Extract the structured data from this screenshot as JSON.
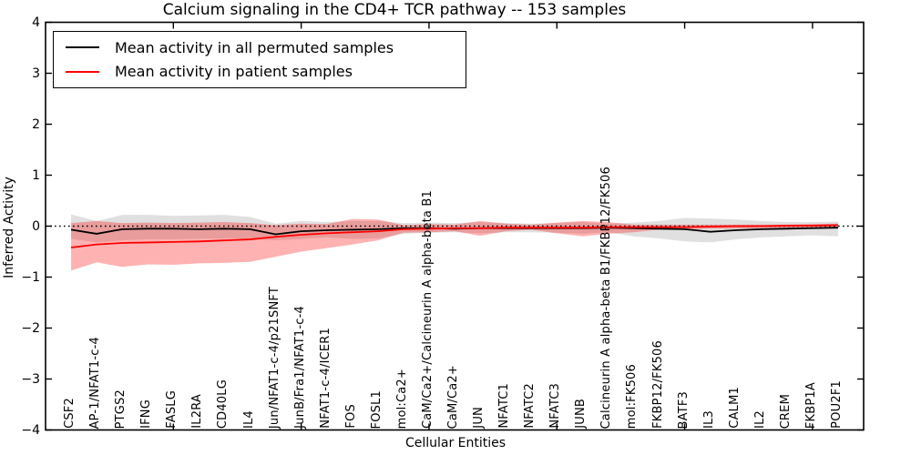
{
  "title": "Calcium signaling in the CD4+ TCR pathway -- 153 samples",
  "legend": {
    "items": [
      {
        "label": "Mean activity in all permuted samples",
        "color": "#000000"
      },
      {
        "label": "Mean activity in patient samples",
        "color": "#ff0000"
      }
    ]
  },
  "axes": {
    "ylabel": "Inferred Activity",
    "xlabel": "Cellular Entities",
    "ytick_labels": [
      "4",
      "3",
      "2",
      "1",
      "0",
      "−1",
      "−2",
      "−3",
      "−4"
    ],
    "ytick_values": [
      4,
      3,
      2,
      1,
      0,
      -1,
      -2,
      -3,
      -4
    ],
    "xtick_values": [
      5,
      10,
      15,
      20,
      25,
      30
    ],
    "ylim": [
      -4,
      4
    ],
    "xlim": [
      0,
      32
    ],
    "grid": false
  },
  "chart_data": {
    "type": "line",
    "title": "Calcium signaling in the CD4+ TCR pathway -- 153 samples",
    "xlabel": "Cellular Entities",
    "ylabel": "Inferred Activity",
    "ylim": [
      -4,
      4
    ],
    "legend_position": "upper left",
    "categories": [
      "CSF2",
      "AP-1/NFAT1-c-4",
      "PTGS2",
      "IFNG",
      "FASLG",
      "IL2RA",
      "CD40LG",
      "IL4",
      "Jun/NFAT1-c-4/p21SNFT",
      "JunB/Fra1/NFAT1-c-4",
      "NFAT1-c-4/ICER1",
      "FOS",
      "FOSL1",
      "mol:Ca2+",
      "CaM/Ca2+/Calcineurin A alpha-beta B1",
      "CaM/Ca2+",
      "JUN",
      "NFATC1",
      "NFATC2",
      "NFATC3",
      "JUNB",
      "Calcineurin A alpha-beta B1/FKBP12/FK506",
      "mol:FK506",
      "FKBP12/FK506",
      "BATF3",
      "IL3",
      "CALM1",
      "IL2",
      "CREM",
      "FKBP1A",
      "POU2F1"
    ],
    "series": [
      {
        "name": "Mean activity in all permuted samples",
        "color": "#000000",
        "values": [
          -0.07,
          -0.15,
          -0.06,
          -0.05,
          -0.05,
          -0.06,
          -0.05,
          -0.06,
          -0.16,
          -0.1,
          -0.08,
          -0.07,
          -0.06,
          -0.04,
          -0.04,
          -0.05,
          -0.04,
          -0.04,
          -0.04,
          -0.04,
          -0.04,
          -0.03,
          -0.04,
          -0.05,
          -0.06,
          -0.11,
          -0.08,
          -0.06,
          -0.05,
          -0.04,
          -0.03
        ]
      },
      {
        "name": "Mean activity in patient samples",
        "color": "#ff0000",
        "values": [
          -0.42,
          -0.36,
          -0.33,
          -0.32,
          -0.31,
          -0.3,
          -0.28,
          -0.26,
          -0.21,
          -0.17,
          -0.14,
          -0.12,
          -0.1,
          -0.06,
          -0.05,
          -0.04,
          -0.04,
          -0.03,
          -0.03,
          -0.03,
          -0.03,
          -0.02,
          -0.02,
          -0.02,
          -0.02,
          -0.01,
          0.0,
          0.0,
          0.01,
          0.01,
          0.02
        ]
      }
    ],
    "bands": [
      {
        "name": "permuted-samples-range",
        "color": "rgba(0,0,0,0.12)",
        "upper": [
          0.23,
          0.1,
          0.22,
          0.22,
          0.2,
          0.21,
          0.22,
          0.18,
          0.05,
          0.1,
          0.08,
          0.1,
          0.1,
          0.06,
          0.07,
          0.06,
          0.08,
          0.06,
          0.05,
          0.06,
          0.08,
          0.05,
          0.07,
          0.1,
          0.16,
          0.15,
          0.13,
          0.1,
          0.08,
          0.08,
          0.09
        ],
        "lower": [
          -0.25,
          -0.32,
          -0.28,
          -0.26,
          -0.26,
          -0.25,
          -0.24,
          -0.25,
          -0.28,
          -0.25,
          -0.22,
          -0.25,
          -0.24,
          -0.15,
          -0.13,
          -0.12,
          -0.14,
          -0.12,
          -0.12,
          -0.13,
          -0.15,
          -0.12,
          -0.2,
          -0.24,
          -0.3,
          -0.32,
          -0.26,
          -0.22,
          -0.2,
          -0.18,
          -0.2
        ]
      },
      {
        "name": "patient-samples-range",
        "color": "rgba(255,0,0,0.30)",
        "upper": [
          0.06,
          0.1,
          0.06,
          0.07,
          0.06,
          0.07,
          0.08,
          0.06,
          0.02,
          0.05,
          0.04,
          0.14,
          0.13,
          0.02,
          0.04,
          0.03,
          0.1,
          0.05,
          0.03,
          0.07,
          0.1,
          0.08,
          0.03,
          0.03,
          0.03,
          0.03,
          0.03,
          0.03,
          0.03,
          0.04,
          0.05
        ],
        "lower": [
          -0.87,
          -0.71,
          -0.8,
          -0.75,
          -0.76,
          -0.73,
          -0.72,
          -0.7,
          -0.6,
          -0.5,
          -0.43,
          -0.36,
          -0.28,
          -0.13,
          -0.12,
          -0.1,
          -0.19,
          -0.1,
          -0.07,
          -0.14,
          -0.2,
          -0.15,
          -0.12,
          -0.07,
          -0.06,
          -0.05,
          -0.05,
          -0.04,
          -0.04,
          -0.04,
          -0.03
        ]
      }
    ],
    "zero_line": {
      "y": 0,
      "style": "dotted",
      "color": "#000000"
    }
  }
}
